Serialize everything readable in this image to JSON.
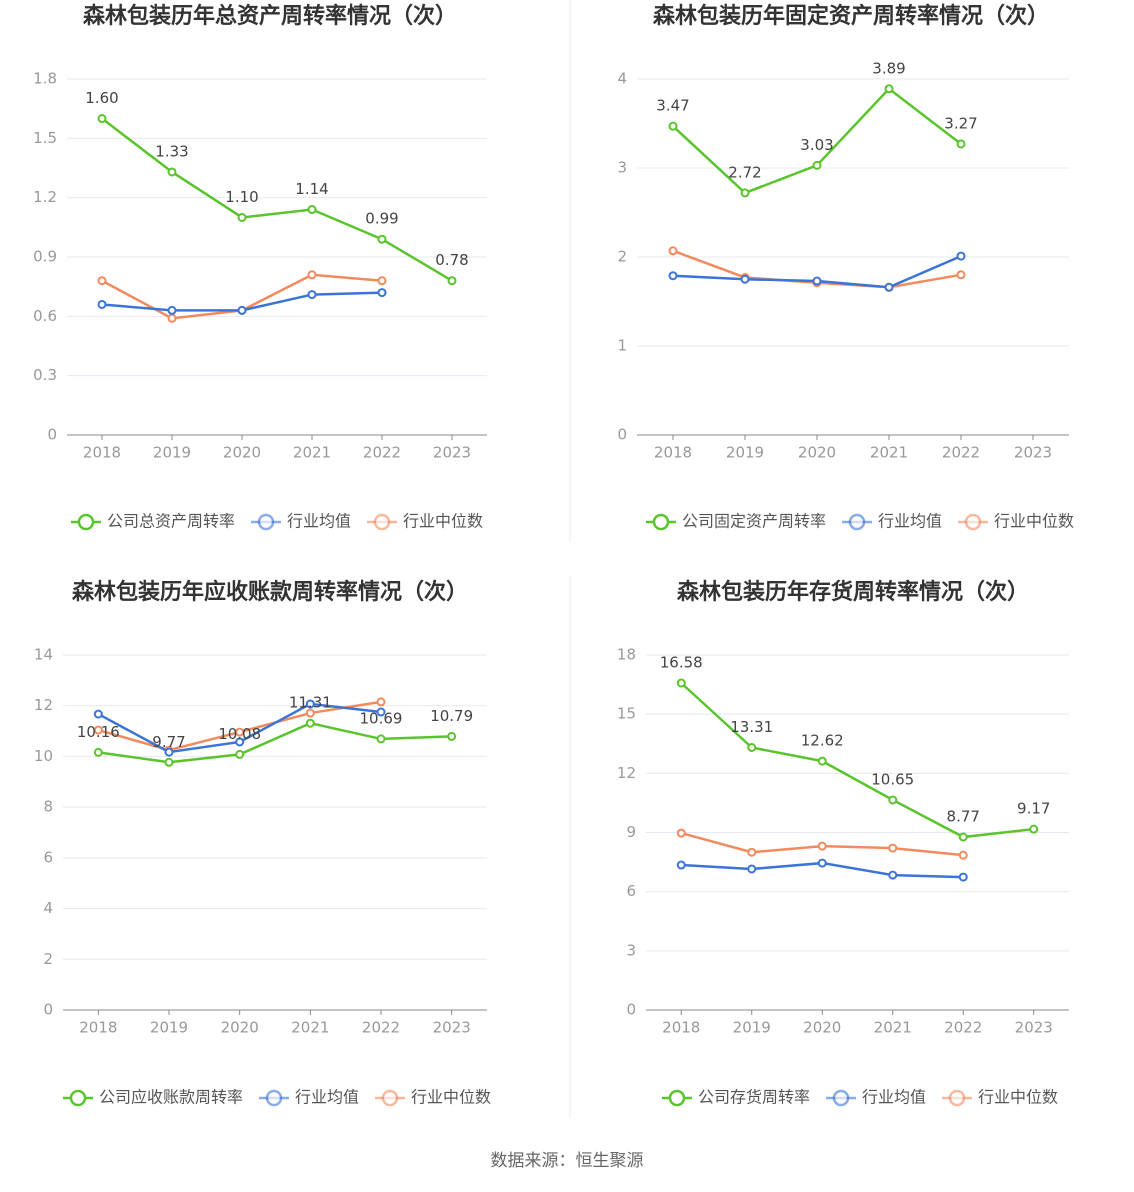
{
  "chart_data": [
    {
      "type": "line",
      "title": "森林包装历年总资产周转率情况（次）",
      "categories": [
        "2018",
        "2019",
        "2020",
        "2021",
        "2022",
        "2023"
      ],
      "ylim": [
        0,
        1.8
      ],
      "yticks": [
        0,
        0.3,
        0.6,
        0.9,
        1.2,
        1.5,
        1.8
      ],
      "grid": true,
      "series": [
        {
          "name": "公司总资产周转率",
          "color": "#5ac42c",
          "values": [
            1.6,
            1.33,
            1.1,
            1.14,
            0.99,
            0.78
          ],
          "value_labels": [
            "1.60",
            "1.33",
            "1.10",
            "1.14",
            "0.99",
            "0.78"
          ]
        },
        {
          "name": "行业均值",
          "color": "#3b74d9",
          "values": [
            0.66,
            0.63,
            0.63,
            0.71,
            0.72,
            null
          ]
        },
        {
          "name": "行业中位数",
          "color": "#f28a5e",
          "values": [
            0.78,
            0.59,
            0.63,
            0.81,
            0.78,
            null
          ]
        }
      ]
    },
    {
      "type": "line",
      "title": "森林包装历年固定资产周转率情况（次）",
      "categories": [
        "2018",
        "2019",
        "2020",
        "2021",
        "2022",
        "2023"
      ],
      "ylim": [
        0,
        4
      ],
      "yticks": [
        0,
        1,
        2,
        3,
        4
      ],
      "grid": true,
      "series": [
        {
          "name": "公司固定资产周转率",
          "color": "#5ac42c",
          "values": [
            3.47,
            2.72,
            3.03,
            3.89,
            3.27,
            null
          ]
        },
        {
          "name": "行业均值",
          "color": "#3b74d9",
          "values": [
            1.79,
            1.75,
            1.73,
            1.66,
            2.01,
            null
          ]
        },
        {
          "name": "行业中位数",
          "color": "#f28a5e",
          "values": [
            2.07,
            1.77,
            1.71,
            1.66,
            1.8,
            null
          ]
        }
      ]
    },
    {
      "type": "line",
      "title": "森林包装历年应收账款周转率情况（次）",
      "categories": [
        "2018",
        "2019",
        "2020",
        "2021",
        "2022",
        "2023"
      ],
      "ylim": [
        0,
        14
      ],
      "yticks": [
        0,
        2,
        4,
        6,
        8,
        10,
        12,
        14
      ],
      "grid": true,
      "series": [
        {
          "name": "公司应收账款周转率",
          "color": "#5ac42c",
          "values": [
            10.16,
            9.77,
            10.08,
            11.31,
            10.69,
            10.79
          ]
        },
        {
          "name": "行业均值",
          "color": "#3b74d9",
          "values": [
            11.67,
            10.17,
            10.57,
            12.07,
            11.75,
            null
          ]
        },
        {
          "name": "行业中位数",
          "color": "#f28a5e",
          "values": [
            11.04,
            10.25,
            10.96,
            11.71,
            12.15,
            null
          ]
        }
      ]
    },
    {
      "type": "line",
      "title": "森林包装历年存货周转率情况（次）",
      "categories": [
        "2018",
        "2019",
        "2020",
        "2021",
        "2022",
        "2023"
      ],
      "ylim": [
        0,
        18
      ],
      "yticks": [
        0,
        3,
        6,
        9,
        12,
        15,
        18
      ],
      "grid": true,
      "series": [
        {
          "name": "公司存货周转率",
          "color": "#5ac42c",
          "values": [
            16.58,
            13.31,
            12.62,
            10.65,
            8.77,
            9.17
          ]
        },
        {
          "name": "行业均值",
          "color": "#3b74d9",
          "values": [
            7.35,
            7.15,
            7.45,
            6.84,
            6.74,
            null
          ]
        },
        {
          "name": "行业中位数",
          "color": "#f28a5e",
          "values": [
            8.97,
            8.0,
            8.31,
            8.21,
            7.85,
            null
          ]
        }
      ]
    }
  ],
  "source": "数据来源：恒生聚源"
}
